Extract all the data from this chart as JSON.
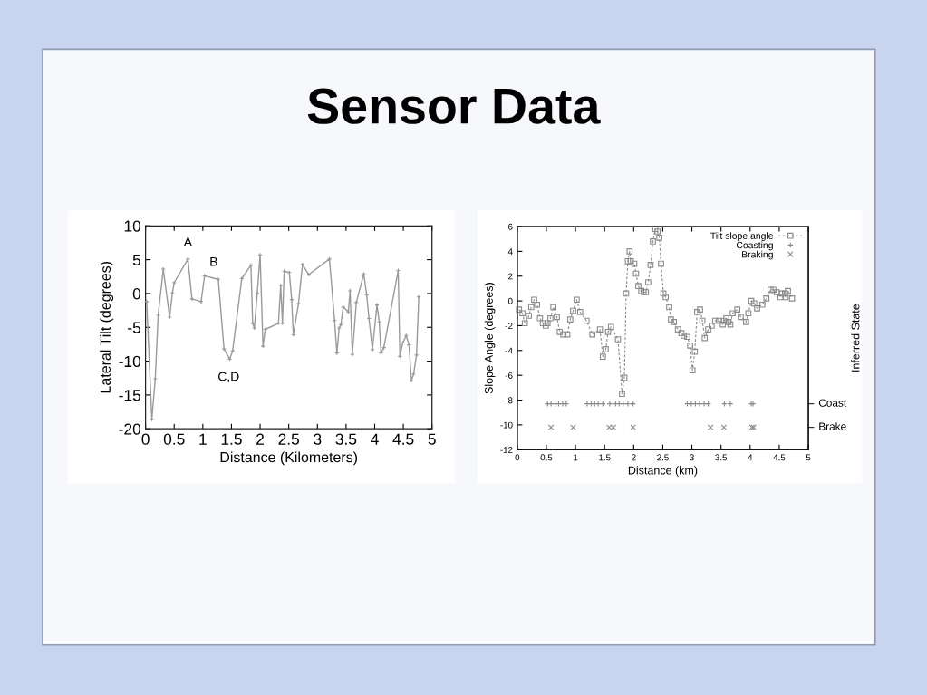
{
  "chart_data": [
    {
      "type": "line",
      "title": "Sensor Data",
      "xlabel": "Distance (Kilometers)",
      "ylabel": "Lateral Tilt (degrees)",
      "x": [
        0.02,
        0.11,
        0.17,
        0.22,
        0.31,
        0.42,
        0.47,
        0.5,
        0.74,
        0.81,
        0.97,
        1.03,
        1.27,
        1.37,
        1.47,
        1.52,
        1.68,
        1.84,
        1.87,
        1.9,
        1.95,
        2.0,
        2.05,
        2.09,
        2.32,
        2.36,
        2.39,
        2.42,
        2.51,
        2.55,
        2.58,
        2.67,
        2.74,
        2.85,
        3.21,
        3.3,
        3.34,
        3.38,
        3.41,
        3.45,
        3.54,
        3.57,
        3.61,
        3.68,
        3.81,
        3.86,
        3.9,
        3.96,
        4.04,
        4.08,
        4.11,
        4.16,
        4.41,
        4.44,
        4.49,
        4.55,
        4.6,
        4.64,
        4.68,
        4.73,
        4.77
      ],
      "series": [
        {
          "color": "#9a9a9a",
          "marker": "plus",
          "values": [
            -1.2,
            -18.6,
            -12.6,
            -3.2,
            3.6,
            -3.5,
            0.1,
            1.6,
            5.1,
            -0.8,
            -1.2,
            2.6,
            2.1,
            -8.2,
            -9.7,
            -8.5,
            2.2,
            4.2,
            -4.4,
            -5.1,
            0.0,
            5.7,
            -7.8,
            -5.3,
            -4.4,
            1.2,
            -4.4,
            3.3,
            3.1,
            -0.9,
            -6.1,
            -1.5,
            4.3,
            2.8,
            5.1,
            -4.0,
            -8.8,
            -5.1,
            -4.6,
            -2.0,
            -2.7,
            0.4,
            -9.0,
            -1.3,
            2.9,
            -0.2,
            -3.7,
            -8.3,
            -1.7,
            -4.2,
            -8.8,
            -8.0,
            3.4,
            -9.3,
            -7.3,
            -6.2,
            -7.6,
            -12.9,
            -11.9,
            -9.1,
            -0.5
          ]
        }
      ],
      "xlim": [
        0,
        5
      ],
      "ylim": [
        -20,
        10
      ],
      "xticks": [
        0,
        0.5,
        1,
        1.5,
        2,
        2.5,
        3,
        3.5,
        4,
        4.5,
        5
      ],
      "yticks": [
        -20,
        -15,
        -10,
        -5,
        0,
        5,
        10
      ],
      "annotations": [
        {
          "text": "A",
          "x": 0.74,
          "y": 5.1
        },
        {
          "text": "B",
          "x": 1.19,
          "y": 2.2
        },
        {
          "text": "C,D",
          "x": 1.45,
          "y": -9.7
        }
      ]
    },
    {
      "type": "line",
      "xlabel": "Distance (km)",
      "ylabel": "Slope Angle (degrees)",
      "y2label": "Inferred State",
      "series": [
        {
          "name": "Tilt slope angle",
          "color": "#8a8a8a",
          "marker": "square",
          "line_style": "dashed",
          "x": [
            0.03,
            0.09,
            0.13,
            0.2,
            0.24,
            0.29,
            0.34,
            0.39,
            0.44,
            0.49,
            0.52,
            0.57,
            0.62,
            0.68,
            0.73,
            0.79,
            0.86,
            0.91,
            0.96,
            1.02,
            1.08,
            1.19,
            1.29,
            1.42,
            1.47,
            1.52,
            1.56,
            1.61,
            1.73,
            1.8,
            1.84,
            1.87,
            1.9,
            1.93,
            1.95,
            2.01,
            2.04,
            2.08,
            2.13,
            2.17,
            2.21,
            2.25,
            2.29,
            2.33,
            2.37,
            2.41,
            2.44,
            2.47,
            2.51,
            2.55,
            2.61,
            2.64,
            2.69,
            2.76,
            2.82,
            2.86,
            2.92,
            2.97,
            3.01,
            3.05,
            3.09,
            3.14,
            3.18,
            3.22,
            3.28,
            3.34,
            3.4,
            3.46,
            3.53,
            3.55,
            3.59,
            3.63,
            3.66,
            3.7,
            3.78,
            3.84,
            3.93,
            3.97,
            4.02,
            4.07,
            4.12,
            4.21,
            4.28,
            4.35,
            4.4,
            4.46,
            4.52,
            4.54,
            4.6,
            4.61,
            4.65,
            4.72
          ],
          "values": [
            -0.7,
            -1.0,
            -1.8,
            -1.2,
            -0.5,
            0.1,
            -0.3,
            -1.4,
            -1.8,
            -2.0,
            -1.8,
            -1.4,
            -0.5,
            -1.3,
            -2.5,
            -2.7,
            -2.7,
            -1.5,
            -0.8,
            0.1,
            -0.9,
            -1.6,
            -2.7,
            -2.3,
            -4.5,
            -3.9,
            -2.5,
            -2.1,
            -3.1,
            -7.5,
            -6.2,
            0.6,
            3.2,
            4.0,
            3.2,
            3.0,
            2.2,
            1.2,
            0.8,
            0.7,
            0.7,
            1.5,
            2.9,
            4.8,
            5.8,
            5.6,
            5.1,
            3.0,
            0.6,
            0.3,
            -0.5,
            -1.5,
            -1.7,
            -2.3,
            -2.6,
            -2.8,
            -2.9,
            -3.6,
            -5.6,
            -4.1,
            -0.9,
            -0.7,
            -1.6,
            -3.0,
            -2.3,
            -2.0,
            -1.6,
            -1.6,
            -1.9,
            -1.6,
            -1.4,
            -1.7,
            -1.9,
            -1.0,
            -0.7,
            -1.3,
            -1.7,
            -1.0,
            0.0,
            -0.2,
            -0.6,
            -0.3,
            0.2,
            0.9,
            0.9,
            0.7,
            0.3,
            0.6,
            0.6,
            0.3,
            0.8,
            0.2
          ]
        },
        {
          "name": "Coasting",
          "type": "scatter",
          "color": "#8a8a8a",
          "marker": "plus",
          "x": [
            0.52,
            0.58,
            0.65,
            0.71,
            0.78,
            0.84,
            1.2,
            1.27,
            1.33,
            1.39,
            1.47,
            1.59,
            1.69,
            1.75,
            1.82,
            1.9,
            1.99,
            2.92,
            2.99,
            3.06,
            3.13,
            3.21,
            3.28,
            3.56,
            3.66,
            4.02,
            4.05
          ],
          "values": [
            -8.3,
            -8.3,
            -8.3,
            -8.3,
            -8.3,
            -8.3,
            -8.3,
            -8.3,
            -8.3,
            -8.3,
            -8.3,
            -8.3,
            -8.3,
            -8.3,
            -8.3,
            -8.3,
            -8.3,
            -8.3,
            -8.3,
            -8.3,
            -8.3,
            -8.3,
            -8.3,
            -8.3,
            -8.3,
            -8.3,
            -8.3
          ]
        },
        {
          "name": "Braking",
          "type": "scatter",
          "color": "#8a8a8a",
          "marker": "cross",
          "x": [
            0.58,
            0.96,
            1.58,
            1.65,
            1.99,
            3.32,
            3.55,
            4.03,
            4.06
          ],
          "values": [
            -10.2,
            -10.2,
            -10.2,
            -10.2,
            -10.2,
            -10.2,
            -10.2,
            -10.2,
            -10.2
          ]
        }
      ],
      "xlim": [
        0,
        5
      ],
      "ylim": [
        -12,
        6
      ],
      "xticks": [
        0,
        0.5,
        1,
        1.5,
        2,
        2.5,
        3,
        3.5,
        4,
        4.5,
        5
      ],
      "yticks": [
        -12,
        -10,
        -8,
        -6,
        -4,
        -2,
        0,
        2,
        4,
        6
      ],
      "annotations": [
        "Coast",
        "Brake"
      ],
      "legend": "top right"
    }
  ]
}
